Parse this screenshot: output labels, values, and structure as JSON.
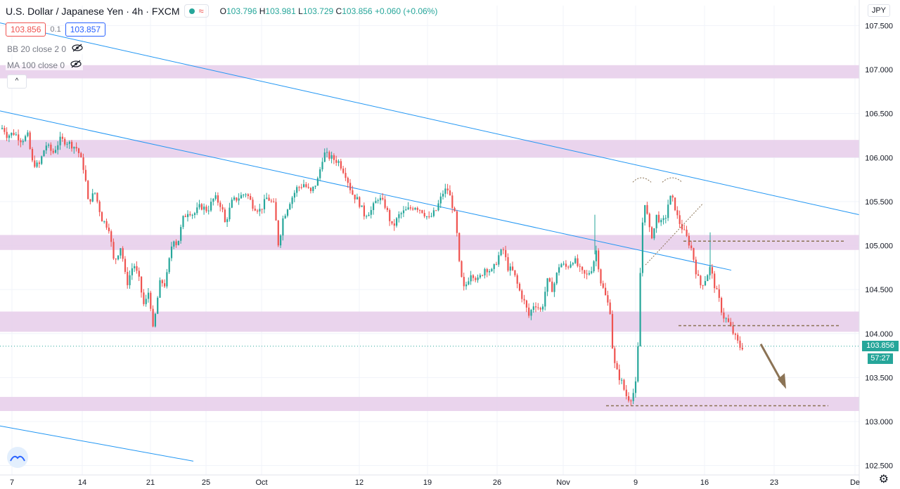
{
  "header": {
    "symbol": "U.S. Dollar / Japanese Yen",
    "interval": "4h",
    "exchange": "FXCM",
    "ohlc": {
      "o_label": "O",
      "o": "103.796",
      "h_label": "H",
      "h": "103.981",
      "l_label": "L",
      "l": "103.729",
      "c_label": "C",
      "c": "103.856",
      "change": "+0.060 (+0.06%)"
    }
  },
  "trade": {
    "sell": "103.856",
    "spread": "0.1",
    "buy": "103.857"
  },
  "indicators": [
    {
      "label": "BB 20 close 2 0"
    },
    {
      "label": "MA 100 close 0"
    }
  ],
  "collapse_label": "^",
  "currency": "JPY",
  "last_price": {
    "price": "103.856",
    "countdown": "57:27"
  },
  "colors": {
    "up": "#26a69a",
    "down": "#ef5350",
    "zone": "#e6cdea",
    "trendline": "#2196f3",
    "annotation": "#8b7355"
  },
  "chart_data": {
    "type": "candlestick",
    "title": "U.S. Dollar / Japanese Yen, 4h, FXCM",
    "y_ticks": [
      "107.500",
      "107.000",
      "106.500",
      "106.000",
      "105.500",
      "105.000",
      "104.500",
      "104.000",
      "103.500",
      "103.000",
      "102.500"
    ],
    "ylim": [
      102.45,
      107.58
    ],
    "x_ticks": [
      "7",
      "14",
      "21",
      "25",
      "Oct",
      "12",
      "19",
      "26",
      "Nov",
      "9",
      "16",
      "23",
      "De"
    ],
    "current_price": 103.856,
    "resistance_zones": [
      [
        106.9,
        107.05
      ],
      [
        106.0,
        106.2
      ],
      [
        104.95,
        105.12
      ],
      [
        104.02,
        104.25
      ],
      [
        103.12,
        103.28
      ]
    ],
    "dashed_levels": [
      105.05,
      104.09,
      103.18
    ],
    "path": [
      [
        0,
        106.3
      ],
      [
        4,
        106.35
      ],
      [
        10,
        106.25
      ],
      [
        20,
        106.28
      ],
      [
        30,
        106.2
      ],
      [
        40,
        106.25
      ],
      [
        45,
        105.95
      ],
      [
        55,
        105.9
      ],
      [
        65,
        106.15
      ],
      [
        75,
        106.05
      ],
      [
        85,
        106.2
      ],
      [
        95,
        106.18
      ],
      [
        110,
        106.1
      ],
      [
        120,
        105.85
      ],
      [
        125,
        105.5
      ],
      [
        135,
        105.6
      ],
      [
        145,
        105.3
      ],
      [
        155,
        105.2
      ],
      [
        162,
        104.8
      ],
      [
        172,
        105.0
      ],
      [
        180,
        104.55
      ],
      [
        190,
        104.8
      ],
      [
        198,
        104.6
      ],
      [
        205,
        104.3
      ],
      [
        212,
        104.5
      ],
      [
        218,
        104.0
      ],
      [
        222,
        104.3
      ],
      [
        228,
        104.6
      ],
      [
        235,
        104.55
      ],
      [
        240,
        104.8
      ],
      [
        246,
        105.1
      ],
      [
        252,
        105.0
      ],
      [
        260,
        105.3
      ],
      [
        268,
        105.4
      ],
      [
        275,
        105.35
      ],
      [
        285,
        105.45
      ],
      [
        295,
        105.4
      ],
      [
        305,
        105.55
      ],
      [
        315,
        105.45
      ],
      [
        320,
        105.25
      ],
      [
        330,
        105.5
      ],
      [
        340,
        105.55
      ],
      [
        350,
        105.6
      ],
      [
        360,
        105.45
      ],
      [
        370,
        105.4
      ],
      [
        380,
        105.55
      ],
      [
        390,
        105.45
      ],
      [
        396,
        105.0
      ],
      [
        402,
        105.3
      ],
      [
        412,
        105.5
      ],
      [
        422,
        105.65
      ],
      [
        432,
        105.7
      ],
      [
        442,
        105.6
      ],
      [
        452,
        105.75
      ],
      [
        460,
        106.05
      ],
      [
        470,
        106.0
      ],
      [
        482,
        105.95
      ],
      [
        492,
        105.8
      ],
      [
        500,
        105.6
      ],
      [
        510,
        105.5
      ],
      [
        518,
        105.35
      ],
      [
        528,
        105.4
      ],
      [
        538,
        105.55
      ],
      [
        548,
        105.45
      ],
      [
        558,
        105.2
      ],
      [
        568,
        105.35
      ],
      [
        578,
        105.4
      ],
      [
        590,
        105.45
      ],
      [
        600,
        105.4
      ],
      [
        610,
        105.3
      ],
      [
        620,
        105.4
      ],
      [
        630,
        105.6
      ],
      [
        636,
        105.65
      ],
      [
        642,
        105.5
      ],
      [
        648,
        105.3
      ],
      [
        654,
        104.7
      ],
      [
        660,
        104.5
      ],
      [
        670,
        104.7
      ],
      [
        680,
        104.6
      ],
      [
        690,
        104.75
      ],
      [
        700,
        104.7
      ],
      [
        710,
        104.9
      ],
      [
        716,
        104.95
      ],
      [
        722,
        104.75
      ],
      [
        730,
        104.7
      ],
      [
        738,
        104.5
      ],
      [
        746,
        104.35
      ],
      [
        752,
        104.2
      ],
      [
        760,
        104.35
      ],
      [
        770,
        104.25
      ],
      [
        778,
        104.6
      ],
      [
        786,
        104.5
      ],
      [
        796,
        104.8
      ],
      [
        806,
        104.75
      ],
      [
        816,
        104.85
      ],
      [
        826,
        104.7
      ],
      [
        834,
        104.65
      ],
      [
        842,
        104.75
      ],
      [
        848,
        104.95
      ],
      [
        854,
        104.6
      ],
      [
        862,
        104.4
      ],
      [
        868,
        104.25
      ],
      [
        872,
        103.7
      ],
      [
        878,
        103.55
      ],
      [
        884,
        103.45
      ],
      [
        890,
        103.3
      ],
      [
        896,
        103.25
      ],
      [
        902,
        103.35
      ],
      [
        906,
        103.5
      ],
      [
        910,
        104.6
      ],
      [
        914,
        105.3
      ],
      [
        918,
        105.55
      ],
      [
        922,
        105.2
      ],
      [
        928,
        105.1
      ],
      [
        934,
        105.35
      ],
      [
        940,
        105.25
      ],
      [
        946,
        105.3
      ],
      [
        952,
        105.55
      ],
      [
        958,
        105.5
      ],
      [
        964,
        105.3
      ],
      [
        970,
        105.2
      ],
      [
        976,
        105.1
      ],
      [
        984,
        104.95
      ],
      [
        990,
        104.7
      ],
      [
        996,
        104.55
      ],
      [
        1002,
        104.6
      ],
      [
        1010,
        104.75
      ],
      [
        1016,
        104.55
      ],
      [
        1022,
        104.4
      ],
      [
        1028,
        104.2
      ],
      [
        1034,
        104.15
      ],
      [
        1040,
        104.05
      ],
      [
        1046,
        103.95
      ],
      [
        1052,
        103.85
      ],
      [
        1056,
        103.85
      ]
    ]
  }
}
